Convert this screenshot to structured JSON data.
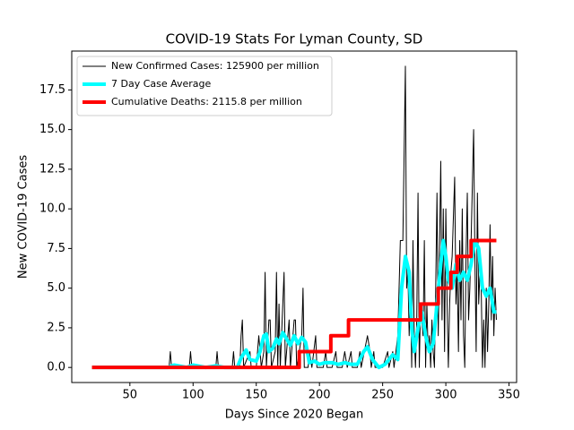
{
  "chart_data": {
    "type": "line",
    "title": "COVID-19 Stats For Lyman County, SD",
    "x_label": "Days Since 2020 Began",
    "y_label": "New COVID-19 Cases",
    "xlim": [
      4,
      356
    ],
    "ylim": [
      -0.95,
      19.95
    ],
    "xticks": [
      50,
      100,
      150,
      200,
      250,
      300,
      350
    ],
    "yticks": [
      {
        "value": 0,
        "label": "0.0"
      },
      2.5,
      {
        "value": 5,
        "label": "5.0"
      },
      7.5,
      {
        "value": 10,
        "label": "10.0"
      },
      12.5,
      {
        "value": 15,
        "label": "15.0"
      },
      17.5
    ],
    "legend": "upper left",
    "series": [
      {
        "name": "New Confirmed Cases: 125900 per million",
        "color": "#000000",
        "line_width": 1,
        "x": [
          20,
          81,
          82,
          83,
          97,
          98,
          99,
          118,
          119,
          120,
          131,
          132,
          133,
          137,
          138,
          139,
          140,
          145,
          146,
          150,
          152,
          154,
          156,
          157,
          158,
          160,
          161,
          162,
          165,
          166,
          167,
          168,
          169,
          172,
          173,
          176,
          177,
          180,
          181,
          182,
          186,
          187,
          188,
          191,
          192,
          194,
          197,
          198,
          203,
          205,
          206,
          210,
          213,
          214,
          218,
          220,
          222,
          225,
          226,
          230,
          232,
          233,
          238,
          240,
          241,
          243,
          244,
          250,
          254,
          255,
          258,
          259,
          262,
          264,
          266,
          268,
          269,
          270,
          271,
          272,
          273,
          274,
          275,
          276,
          277,
          278,
          279,
          280,
          281,
          282,
          283,
          284,
          285,
          286,
          287,
          288,
          289,
          290,
          291,
          292,
          293,
          294,
          296,
          297,
          298,
          299,
          300,
          301,
          302,
          303,
          304,
          305,
          307,
          308,
          309,
          310,
          311,
          312,
          313,
          314,
          315,
          316,
          317,
          318,
          319,
          320,
          322,
          323,
          324,
          325,
          326,
          327,
          328,
          329,
          330,
          331,
          332,
          333,
          334,
          335,
          336,
          337,
          338,
          339,
          340
        ],
        "values": [
          0,
          0,
          1,
          0,
          0,
          1,
          0,
          0,
          1,
          0,
          0,
          1,
          0,
          0,
          2,
          3,
          0,
          1,
          0,
          0,
          2,
          0,
          1,
          6,
          0,
          3,
          3,
          0,
          1,
          6,
          0,
          4,
          0,
          6,
          0,
          3,
          0,
          3,
          3,
          0,
          2,
          5,
          0,
          0,
          1,
          0,
          2,
          0,
          0,
          1,
          0,
          0,
          1,
          0,
          0,
          1,
          0,
          1,
          0,
          0,
          1,
          0,
          2,
          1,
          0,
          1,
          0,
          0,
          1,
          0,
          1,
          0,
          2,
          8,
          8,
          19,
          5,
          6,
          2,
          5,
          0,
          8,
          2,
          0,
          3,
          11,
          0,
          4,
          3,
          2,
          8,
          0,
          4,
          1,
          2,
          0,
          3,
          1,
          0,
          5,
          11,
          2,
          13,
          3,
          10,
          1,
          10,
          4,
          0,
          4,
          6,
          7,
          12,
          4,
          6,
          1,
          8,
          3,
          10,
          2,
          0,
          7,
          11,
          3,
          5,
          8,
          15,
          7,
          1,
          11,
          4,
          6,
          5,
          0,
          3,
          0,
          5,
          1,
          4,
          9,
          3,
          7,
          2,
          5,
          3
        ]
      },
      {
        "name": "7 Day Case Average",
        "color": "#00ffff",
        "line_width": 4,
        "x": [
          20,
          80,
          85,
          95,
          100,
          110,
          118,
          125,
          135,
          138,
          142,
          145,
          150,
          153,
          156,
          158,
          160,
          163,
          166,
          168,
          171,
          174,
          177,
          180,
          183,
          186,
          189,
          192,
          196,
          200,
          204,
          210,
          215,
          220,
          225,
          230,
          235,
          238,
          242,
          247,
          252,
          258,
          262,
          265,
          268,
          271,
          273,
          275,
          278,
          281,
          284,
          287,
          290,
          293,
          296,
          298,
          300,
          302,
          305,
          308,
          311,
          314,
          317,
          320,
          323,
          326,
          329,
          332,
          335,
          338,
          340
        ],
        "values": [
          0,
          0,
          0.15,
          0,
          0.15,
          0,
          0.1,
          0,
          0,
          0.6,
          1.1,
          0.5,
          0.4,
          1.0,
          2.0,
          2.1,
          1.0,
          1.2,
          1.8,
          1.5,
          2.2,
          1.8,
          1.4,
          2.0,
          1.5,
          1.9,
          1.6,
          0.3,
          0.4,
          0.2,
          0.3,
          0.3,
          0.2,
          0.3,
          0.2,
          0.2,
          1.0,
          1.3,
          0.5,
          0,
          0.2,
          0.8,
          0.5,
          5.0,
          7.0,
          6.0,
          2.5,
          1.0,
          2.5,
          3.5,
          2.0,
          1.0,
          1.5,
          4.0,
          6.5,
          8.0,
          7.0,
          5.5,
          5.0,
          6.5,
          5.5,
          6.0,
          5.5,
          6.5,
          8.0,
          7.5,
          5.0,
          4.5,
          5.0,
          3.5,
          3.5
        ]
      },
      {
        "name": "Cumulative Deaths: 2115.8 per million",
        "color": "#ff0000",
        "line_width": 4,
        "x": [
          20,
          184,
          184,
          209,
          209,
          223,
          223,
          280,
          280,
          294,
          294,
          304,
          304,
          309,
          309,
          320,
          320,
          340
        ],
        "values": [
          0,
          0,
          1,
          1,
          2,
          2,
          3,
          3,
          4,
          4,
          5,
          5,
          6,
          6,
          7,
          7,
          8,
          8
        ]
      }
    ]
  }
}
